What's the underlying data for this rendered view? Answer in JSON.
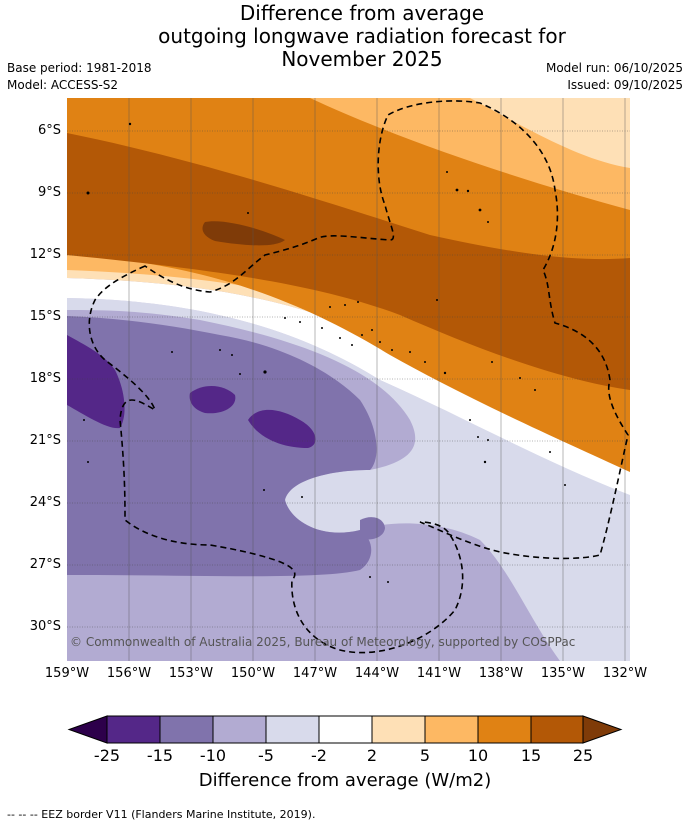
{
  "title": {
    "line1": "Difference from average",
    "line2": "outgoing longwave radiation forecast for",
    "line3": "November 2025"
  },
  "meta": {
    "base_period": "Base period: 1981-2018",
    "model": "Model: ACCESS-S2",
    "model_run": "Model run: 06/10/2025",
    "issued": "Issued: 09/10/2025"
  },
  "map": {
    "copyright": "© Commonwealth of Australia 2025, Bureau of Meteorology, supported by COSPPac",
    "lat_labels": [
      "6°S",
      "9°S",
      "12°S",
      "15°S",
      "18°S",
      "21°S",
      "24°S",
      "27°S",
      "30°S"
    ],
    "lon_labels": [
      "159°W",
      "156°W",
      "153°W",
      "150°W",
      "147°W",
      "144°W",
      "141°W",
      "138°W",
      "135°W",
      "132°W"
    ]
  },
  "colorbar": {
    "title": "Difference from average (W/m2)",
    "tick_labels": [
      "-25",
      "-15",
      "-10",
      "-5",
      "-2",
      "2",
      "5",
      "10",
      "15",
      "25"
    ],
    "colors": {
      "lt_-25": "#2d004b",
      "-25_-15": "#542788",
      "-15_-10": "#8073ac",
      "-10_-5": "#b2abd2",
      "-5_-2": "#d8daeb",
      "-2_2": "#ffffff",
      "2_5": "#fee0b6",
      "5_10": "#fdb863",
      "10_15": "#e08214",
      "15_25": "#b35806",
      "gt_25": "#7f3b08"
    }
  },
  "legend": {
    "text": "--  --  -- EEZ border V11 (Flanders Marine Institute, 2019)."
  }
}
